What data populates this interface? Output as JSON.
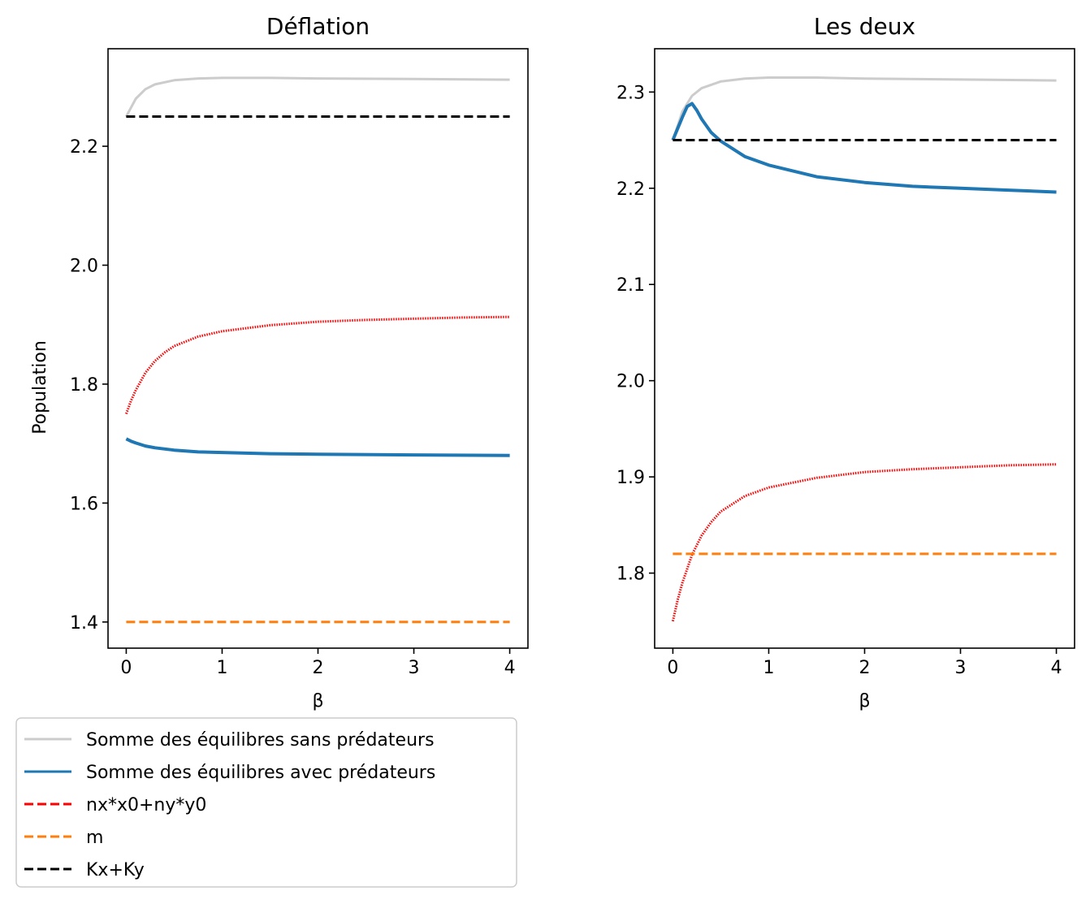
{
  "colors": {
    "sum_without": "#cccccc",
    "sum_with": "#1f77b4",
    "nx_ny": "#ff0000",
    "m": "#ff7f0e",
    "kx_ky": "#000000"
  },
  "legend": {
    "items": [
      {
        "label": "Somme des équilibres sans prédateurs",
        "color": "#cccccc",
        "style": "solid"
      },
      {
        "label": "Somme des équilibres avec prédateurs",
        "color": "#1f77b4",
        "style": "solid"
      },
      {
        "label": "nx*x0+ny*y0",
        "color": "#ff0000",
        "style": "dashed"
      },
      {
        "label": "m",
        "color": "#ff7f0e",
        "style": "dashed"
      },
      {
        "label": "Kx+Ky",
        "color": "#000000",
        "style": "dashed"
      }
    ]
  },
  "chart_data": [
    {
      "type": "line",
      "title": "Déflation",
      "xlabel": "β",
      "ylabel": "Population",
      "xlim": [
        -0.19,
        4.19
      ],
      "ylim": [
        1.356,
        2.364
      ],
      "xticks": [
        0,
        1,
        2,
        3,
        4
      ],
      "xtick_labels": [
        "0",
        "1",
        "2",
        "3",
        "4"
      ],
      "yticks": [
        1.4,
        1.6,
        1.8,
        2.0,
        2.2
      ],
      "ytick_labels": [
        "1.4",
        "1.6",
        "1.8",
        "2.0",
        "2.2"
      ],
      "grid": false,
      "series": [
        {
          "name": "Somme des équilibres sans prédateurs",
          "color": "#cccccc",
          "style": "solid",
          "x": [
            0,
            0.05,
            0.1,
            0.2,
            0.3,
            0.5,
            0.75,
            1,
            1.5,
            2,
            3,
            4
          ],
          "y": [
            2.25,
            2.265,
            2.28,
            2.296,
            2.304,
            2.311,
            2.314,
            2.315,
            2.315,
            2.314,
            2.313,
            2.312
          ]
        },
        {
          "name": "Somme des équilibres avec prédateurs",
          "color": "#1f77b4",
          "style": "solid",
          "x": [
            0,
            0.05,
            0.1,
            0.2,
            0.3,
            0.5,
            0.75,
            1,
            1.5,
            2,
            3,
            4
          ],
          "y": [
            1.708,
            1.704,
            1.701,
            1.696,
            1.693,
            1.689,
            1.686,
            1.685,
            1.683,
            1.682,
            1.681,
            1.68
          ]
        },
        {
          "name": "nx*x0+ny*y0",
          "color": "#ff0000",
          "style": "dotted",
          "x": [
            0,
            0.05,
            0.1,
            0.2,
            0.3,
            0.4,
            0.5,
            0.75,
            1,
            1.5,
            2,
            2.5,
            3,
            3.5,
            4
          ],
          "y": [
            1.75,
            1.772,
            1.79,
            1.819,
            1.839,
            1.853,
            1.864,
            1.88,
            1.889,
            1.899,
            1.905,
            1.908,
            1.91,
            1.912,
            1.913
          ]
        },
        {
          "name": "m",
          "color": "#ff7f0e",
          "style": "dashed",
          "x": [
            0,
            4
          ],
          "y": [
            1.4,
            1.4
          ]
        },
        {
          "name": "Kx+Ky",
          "color": "#000000",
          "style": "dashed",
          "x": [
            0,
            4
          ],
          "y": [
            2.25,
            2.25
          ]
        }
      ]
    },
    {
      "type": "line",
      "title": "Les deux",
      "xlabel": "β",
      "ylabel": "",
      "xlim": [
        -0.19,
        4.19
      ],
      "ylim": [
        1.722,
        2.345
      ],
      "xticks": [
        0,
        1,
        2,
        3,
        4
      ],
      "xtick_labels": [
        "0",
        "1",
        "2",
        "3",
        "4"
      ],
      "yticks": [
        1.8,
        1.9,
        2.0,
        2.1,
        2.2,
        2.3
      ],
      "ytick_labels": [
        "1.8",
        "1.9",
        "2.0",
        "2.1",
        "2.2",
        "2.3"
      ],
      "grid": false,
      "series": [
        {
          "name": "Somme des équilibres sans prédateurs",
          "color": "#cccccc",
          "style": "solid",
          "x": [
            0,
            0.05,
            0.1,
            0.2,
            0.3,
            0.5,
            0.75,
            1,
            1.5,
            2,
            3,
            4
          ],
          "y": [
            2.25,
            2.265,
            2.28,
            2.296,
            2.304,
            2.311,
            2.314,
            2.315,
            2.315,
            2.314,
            2.313,
            2.312
          ]
        },
        {
          "name": "Somme des équilibres avec prédateurs",
          "color": "#1f77b4",
          "style": "solid",
          "x": [
            0,
            0.05,
            0.1,
            0.15,
            0.2,
            0.25,
            0.3,
            0.4,
            0.5,
            0.75,
            1,
            1.5,
            2,
            2.5,
            3,
            3.5,
            4
          ],
          "y": [
            2.25,
            2.262,
            2.274,
            2.285,
            2.288,
            2.281,
            2.272,
            2.258,
            2.249,
            2.233,
            2.224,
            2.212,
            2.206,
            2.202,
            2.2,
            2.198,
            2.196
          ]
        },
        {
          "name": "nx*x0+ny*y0",
          "color": "#ff0000",
          "style": "dotted",
          "x": [
            0,
            0.05,
            0.1,
            0.2,
            0.3,
            0.4,
            0.5,
            0.75,
            1,
            1.5,
            2,
            2.5,
            3,
            3.5,
            4
          ],
          "y": [
            1.75,
            1.772,
            1.79,
            1.819,
            1.839,
            1.853,
            1.864,
            1.88,
            1.889,
            1.899,
            1.905,
            1.908,
            1.91,
            1.912,
            1.913
          ]
        },
        {
          "name": "m",
          "color": "#ff7f0e",
          "style": "dashed",
          "x": [
            0,
            4
          ],
          "y": [
            1.82,
            1.82
          ]
        },
        {
          "name": "Kx+Ky",
          "color": "#000000",
          "style": "dashed",
          "x": [
            0,
            4
          ],
          "y": [
            2.25,
            2.25
          ]
        }
      ]
    }
  ]
}
